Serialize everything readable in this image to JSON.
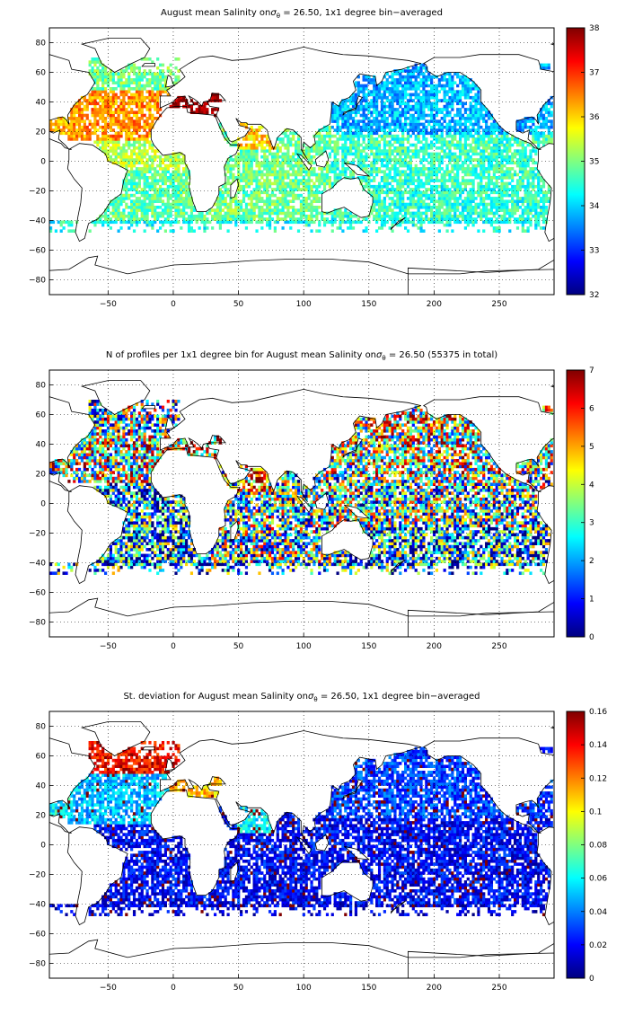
{
  "chart_data": [
    {
      "type": "heatmap",
      "title": "August mean Salinity on σθ = 26.50, 1x1 degree bin−averaged",
      "title_parts": {
        "before": "August mean Salinity on",
        "sym": "σ",
        "sub": "θ",
        "after": " = 26.50, 1x1 degree bin−averaged"
      },
      "xlim": [
        -95,
        292
      ],
      "ylim": [
        -90,
        90
      ],
      "xticks": [
        -50,
        0,
        50,
        100,
        150,
        200,
        250
      ],
      "yticks": [
        80,
        60,
        40,
        20,
        0,
        -20,
        -40,
        -60,
        -80
      ],
      "grid": "dotted",
      "colorbar": {
        "range": [
          32,
          38
        ],
        "ticks": [
          "38",
          "37",
          "36",
          "35",
          "34",
          "33",
          "32"
        ]
      },
      "regions": [
        {
          "region": "Subpolar North Atlantic",
          "approx_value": 34.9
        },
        {
          "region": "Subtropical North Atlantic",
          "approx_value": 36.4
        },
        {
          "region": "Mediterranean Sea",
          "approx_value": 38.0
        },
        {
          "region": "Gulf of Mexico",
          "approx_value": 36.2
        },
        {
          "region": "Tropical Atlantic",
          "approx_value": 35.3
        },
        {
          "region": "South Atlantic",
          "approx_value": 34.8
        },
        {
          "region": "Arabian Sea",
          "approx_value": 36.0
        },
        {
          "region": "Indian Ocean",
          "approx_value": 34.9
        },
        {
          "region": "North Pacific",
          "approx_value": 33.8
        },
        {
          "region": "Tropical Pacific",
          "approx_value": 34.6
        },
        {
          "region": "South Pacific",
          "approx_value": 34.5
        },
        {
          "region": "Southern Ocean",
          "approx_value": 34.4
        }
      ]
    },
    {
      "type": "heatmap",
      "title": "N of profiles per 1x1 degree bin for August mean Salinity on σθ = 26.50 (55375 in total)",
      "title_parts": {
        "before": "N of profiles per 1x1 degree bin for August mean Salinity on",
        "sym": "σ",
        "sub": "θ",
        "after": " = 26.50 (55375 in total)"
      },
      "xlim": [
        -95,
        292
      ],
      "ylim": [
        -90,
        90
      ],
      "xticks": [
        -50,
        0,
        50,
        100,
        150,
        200,
        250
      ],
      "yticks": [
        80,
        60,
        40,
        20,
        0,
        -20,
        -40,
        -60,
        -80
      ],
      "grid": "dotted",
      "colorbar": {
        "range": [
          0,
          7
        ],
        "ticks": [
          "7",
          "6",
          "5",
          "4",
          "3",
          "2",
          "1",
          "0"
        ]
      },
      "regions": [
        {
          "region": "Subpolar North Atlantic",
          "approx_value": 3
        },
        {
          "region": "Subtropical North Atlantic",
          "approx_value": 4
        },
        {
          "region": "Mediterranean Sea",
          "approx_value": 5
        },
        {
          "region": "Gulf of Mexico",
          "approx_value": 4
        },
        {
          "region": "Tropical Atlantic",
          "approx_value": 2
        },
        {
          "region": "South Atlantic",
          "approx_value": 2
        },
        {
          "region": "Arabian Sea",
          "approx_value": 5
        },
        {
          "region": "Indian Ocean",
          "approx_value": 3
        },
        {
          "region": "North Pacific",
          "approx_value": 4
        },
        {
          "region": "Tropical Pacific",
          "approx_value": 3
        },
        {
          "region": "South Pacific",
          "approx_value": 2
        },
        {
          "region": "Southern Ocean",
          "approx_value": 2
        }
      ]
    },
    {
      "type": "heatmap",
      "title": "St. deviation for August mean Salinity on σθ = 26.50, 1x1 degree bin−averaged",
      "title_parts": {
        "before": "St. deviation for August mean Salinity on",
        "sym": "σ",
        "sub": "θ",
        "after": " = 26.50, 1x1 degree bin−averaged"
      },
      "xlim": [
        -95,
        292
      ],
      "ylim": [
        -90,
        90
      ],
      "xticks": [
        -50,
        0,
        50,
        100,
        150,
        200,
        250
      ],
      "yticks": [
        80,
        60,
        40,
        20,
        0,
        -20,
        -40,
        -60,
        -80
      ],
      "grid": "dotted",
      "colorbar": {
        "range": [
          0,
          0.16
        ],
        "ticks": [
          "0.16",
          "0.14",
          "0.12",
          "0.1",
          "0.08",
          "0.06",
          "0.04",
          "0.02",
          "0"
        ]
      },
      "regions": [
        {
          "region": "Subpolar North Atlantic",
          "approx_value": 0.14
        },
        {
          "region": "Subtropical North Atlantic",
          "approx_value": 0.05
        },
        {
          "region": "Mediterranean Sea",
          "approx_value": 0.11
        },
        {
          "region": "Gulf of Mexico",
          "approx_value": 0.06
        },
        {
          "region": "Tropical Atlantic",
          "approx_value": 0.02
        },
        {
          "region": "South Atlantic",
          "approx_value": 0.02
        },
        {
          "region": "Arabian Sea",
          "approx_value": 0.06
        },
        {
          "region": "Indian Ocean",
          "approx_value": 0.02
        },
        {
          "region": "North Pacific",
          "approx_value": 0.03
        },
        {
          "region": "Tropical Pacific",
          "approx_value": 0.02
        },
        {
          "region": "South Pacific",
          "approx_value": 0.02
        },
        {
          "region": "Southern Ocean",
          "approx_value": 0.015
        }
      ]
    }
  ]
}
